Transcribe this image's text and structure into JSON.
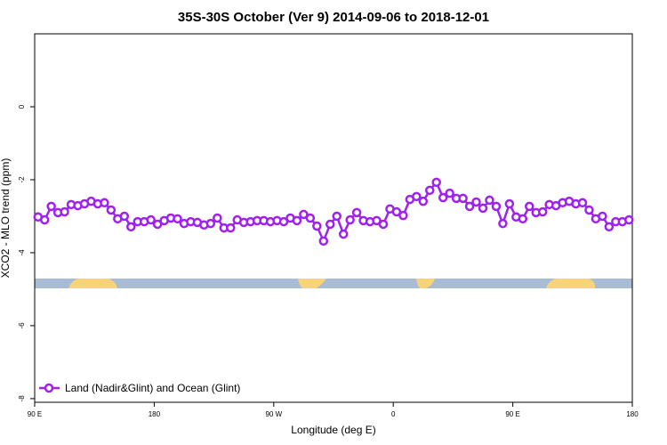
{
  "chart_data": {
    "type": "line",
    "title": "35S-30S October (Ver 9)   2014-09-06 to 2018-12-01",
    "x_label": "Longitude (deg E)",
    "y_label": "XCO2 - MLO trend (ppm)",
    "x": [
      92.5,
      97.5,
      102.5,
      107.5,
      112.5,
      117.5,
      122.5,
      127.5,
      132.5,
      137.5,
      142.5,
      147.5,
      152.5,
      157.5,
      162.5,
      167.5,
      172.5,
      177.5,
      182.5,
      187.5,
      192.5,
      197.5,
      202.5,
      207.5,
      212.5,
      217.5,
      222.5,
      227.5,
      232.5,
      237.5,
      242.5,
      247.5,
      252.5,
      257.5,
      262.5,
      267.5,
      272.5,
      277.5,
      282.5,
      287.5,
      292.5,
      297.5,
      302.5,
      307.5,
      312.5,
      317.5,
      322.5,
      327.5,
      332.5,
      337.5,
      342.5,
      347.5,
      352.5,
      357.5,
      362.5,
      367.5,
      372.5,
      377.5,
      382.5,
      387.5,
      392.5,
      397.5,
      402.5,
      407.5,
      412.5,
      417.5,
      422.5,
      427.5,
      432.5,
      437.5,
      442.5,
      447.5,
      452.5,
      457.5,
      462.5,
      467.5,
      472.5,
      477.5,
      482.5,
      487.5,
      492.5,
      497.5,
      502.5,
      507.5,
      512.5,
      517.5,
      522.5,
      527.5,
      532.5,
      537.5
    ],
    "series": [
      {
        "name": "Land (Nadir&Glint) and Ocean (Glint)",
        "color": "#a020f0",
        "values": [
          -3.02,
          -3.1,
          -2.73,
          -2.9,
          -2.88,
          -2.68,
          -2.71,
          -2.66,
          -2.59,
          -2.66,
          -2.63,
          -2.83,
          -3.07,
          -3.0,
          -3.29,
          -3.15,
          -3.15,
          -3.1,
          -3.22,
          -3.12,
          -3.05,
          -3.07,
          -3.2,
          -3.15,
          -3.17,
          -3.24,
          -3.2,
          -3.05,
          -3.32,
          -3.32,
          -3.1,
          -3.17,
          -3.15,
          -3.12,
          -3.12,
          -3.15,
          -3.12,
          -3.15,
          -3.05,
          -3.12,
          -2.95,
          -3.05,
          -3.27,
          -3.68,
          -3.22,
          -3.0,
          -3.49,
          -3.1,
          -2.9,
          -3.12,
          -3.15,
          -3.12,
          -3.22,
          -2.8,
          -2.88,
          -2.98,
          -2.54,
          -2.46,
          -2.59,
          -2.29,
          -2.07,
          -2.49,
          -2.37,
          -2.51,
          -2.51,
          -2.73,
          -2.61,
          -2.78,
          -2.56,
          -2.73,
          -3.2,
          -2.66,
          -3.02,
          -3.07,
          -2.73,
          -2.9,
          -2.88,
          -2.68,
          -2.71,
          -2.63,
          -2.59,
          -2.66,
          -2.63,
          -2.83,
          -3.07,
          -3.0,
          -3.29,
          -3.15,
          -3.15,
          -3.1
        ]
      }
    ],
    "xlim": [
      90,
      540
    ],
    "xticks": [
      {
        "value": 90,
        "label": "90 E"
      },
      180,
      {
        "value": 270,
        "label": "90 W"
      },
      {
        "value": 360,
        "label": "0"
      },
      {
        "value": 450,
        "label": "90 E"
      },
      {
        "value": 540,
        "label": "180"
      }
    ],
    "ylim": [
      -8.1,
      2
    ],
    "yticks": [
      0,
      -2,
      -4,
      -6,
      -8
    ],
    "legend": "bottom left"
  }
}
